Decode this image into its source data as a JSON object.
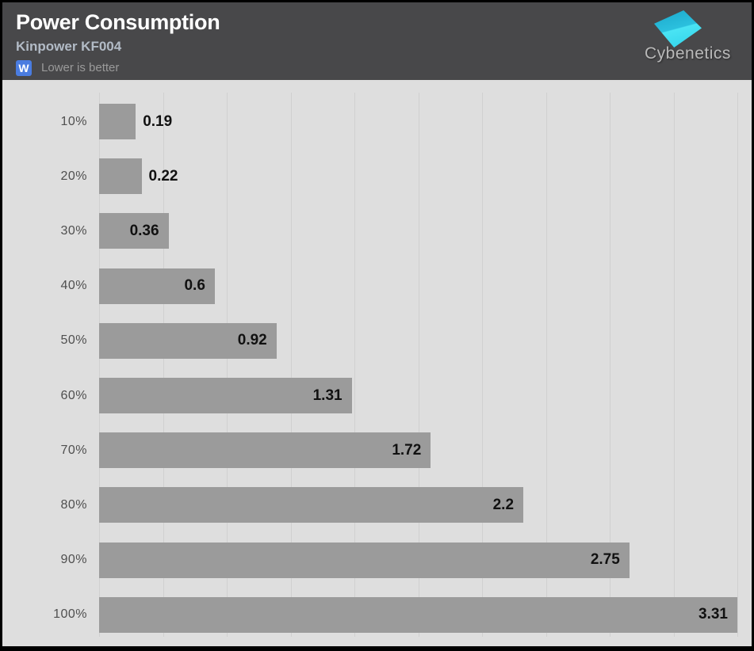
{
  "header": {
    "title": "Power Consumption",
    "subtitle": "Kinpower KF004",
    "unit_badge": "W",
    "note": "Lower is better",
    "brand": "Cybenetics"
  },
  "colors": {
    "header_bg": "#48484a",
    "plot_bg": "#dedede",
    "grid_line": "#d0d0d0",
    "bar_fill": "#9b9b9b",
    "value_text": "#111111",
    "category_text": "#4f4f4f",
    "subtitle_text": "#b2bbc6",
    "note_text": "#9a9a9a",
    "badge_blue": "#4a7ce0",
    "brand_text": "#b9b9b9",
    "logo_cyan": "#2ec8e6"
  },
  "chart_data": {
    "type": "bar",
    "orientation": "horizontal",
    "title": "Power Consumption",
    "subtitle": "Kinpower KF004",
    "unit": "W",
    "note": "Lower is better",
    "categories": [
      "10%",
      "20%",
      "30%",
      "40%",
      "50%",
      "60%",
      "70%",
      "80%",
      "90%",
      "100%"
    ],
    "values": [
      0.19,
      0.22,
      0.36,
      0.6,
      0.92,
      1.31,
      1.72,
      2.2,
      2.75,
      3.31
    ],
    "value_labels": [
      "0.19",
      "0.22",
      "0.36",
      "0.6",
      "0.92",
      "1.31",
      "1.72",
      "2.2",
      "2.75",
      "3.31"
    ],
    "xlabel": "",
    "xlim": [
      0,
      3.31
    ],
    "gridline_count": 10,
    "grid": "vertical",
    "legend": false
  }
}
